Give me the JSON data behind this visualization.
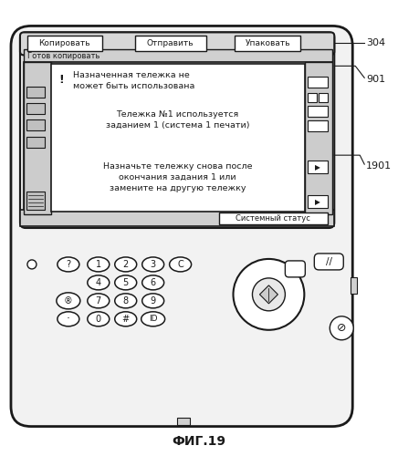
{
  "title": "ФИГ.19",
  "label_304": "304",
  "label_901": "901",
  "label_1901": "1901",
  "btn_copy": "Копировать",
  "btn_send": "Отправить",
  "btn_pack": "Упаковать",
  "status_label": "Готов копировать",
  "status_btn": "Системный статус",
  "msg1_line1": "Назначенная тележка не",
  "msg1_line2": "может быть использована",
  "msg2_line1": "Тележка №1 используется",
  "msg2_line2": "заданием 1 (система 1 печати)",
  "msg3_line1": "Назначьте тележку снова после",
  "msg3_line2": "окончания задания 1 или",
  "msg3_line3": "замените на другую тележку",
  "keys_row1": [
    "?",
    "1",
    "2",
    "3",
    "C"
  ],
  "keys_row2": [
    "4",
    "5",
    "6"
  ],
  "keys_row3": [
    "*",
    "7",
    "8",
    "9"
  ],
  "keys_row4": [
    ".",
    "0",
    "#",
    "ID"
  ],
  "bg_color": "#ffffff",
  "device_fill": "#f0f0f0",
  "border_color": "#1a1a1a"
}
